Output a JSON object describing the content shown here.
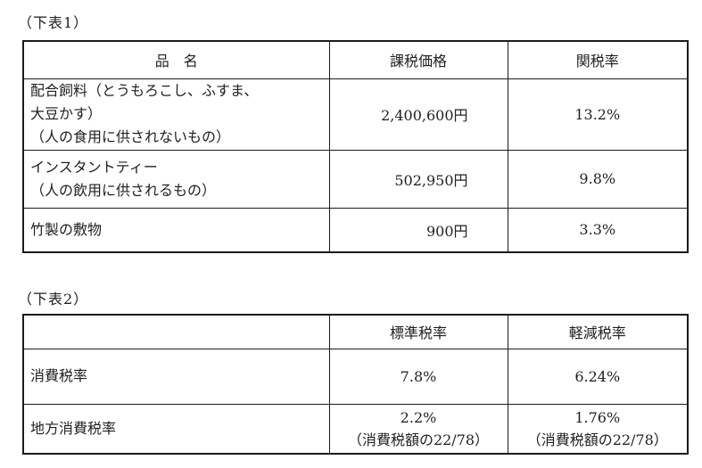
{
  "colors": {
    "background": "#ffffff",
    "text": "#1f1f1f",
    "border": "#1b1b1b"
  },
  "table1": {
    "label": "（下表1）",
    "headers": {
      "item_name": "品　名",
      "taxable_price": "課税価格",
      "tariff_rate": "関税率"
    },
    "rows": [
      {
        "name_lines": [
          "配合飼料（とうもろこし、ふすま、",
          "大豆かす）",
          "（人の食用に供されないもの）"
        ],
        "price": "2,400,600円",
        "rate": "13.2%"
      },
      {
        "name_lines": [
          "インスタントティー",
          "（人の飲用に供されるもの）"
        ],
        "price": "502,950円",
        "rate": "9.8%"
      },
      {
        "name_lines": [
          "竹製の敷物"
        ],
        "price": "900円",
        "rate": "3.3%"
      }
    ]
  },
  "table2": {
    "label": "（下表2）",
    "headers": {
      "category": "",
      "standard_rate": "標準税率",
      "reduced_rate": "軽減税率"
    },
    "rows": [
      {
        "name": "消費税率",
        "standard_lines": [
          "7.8%"
        ],
        "reduced_lines": [
          "6.24%"
        ]
      },
      {
        "name": "地方消費税率",
        "standard_lines": [
          "2.2%",
          "（消費税額の22/78）"
        ],
        "reduced_lines": [
          "1.76%",
          "（消費税額の22/78）"
        ]
      }
    ]
  }
}
